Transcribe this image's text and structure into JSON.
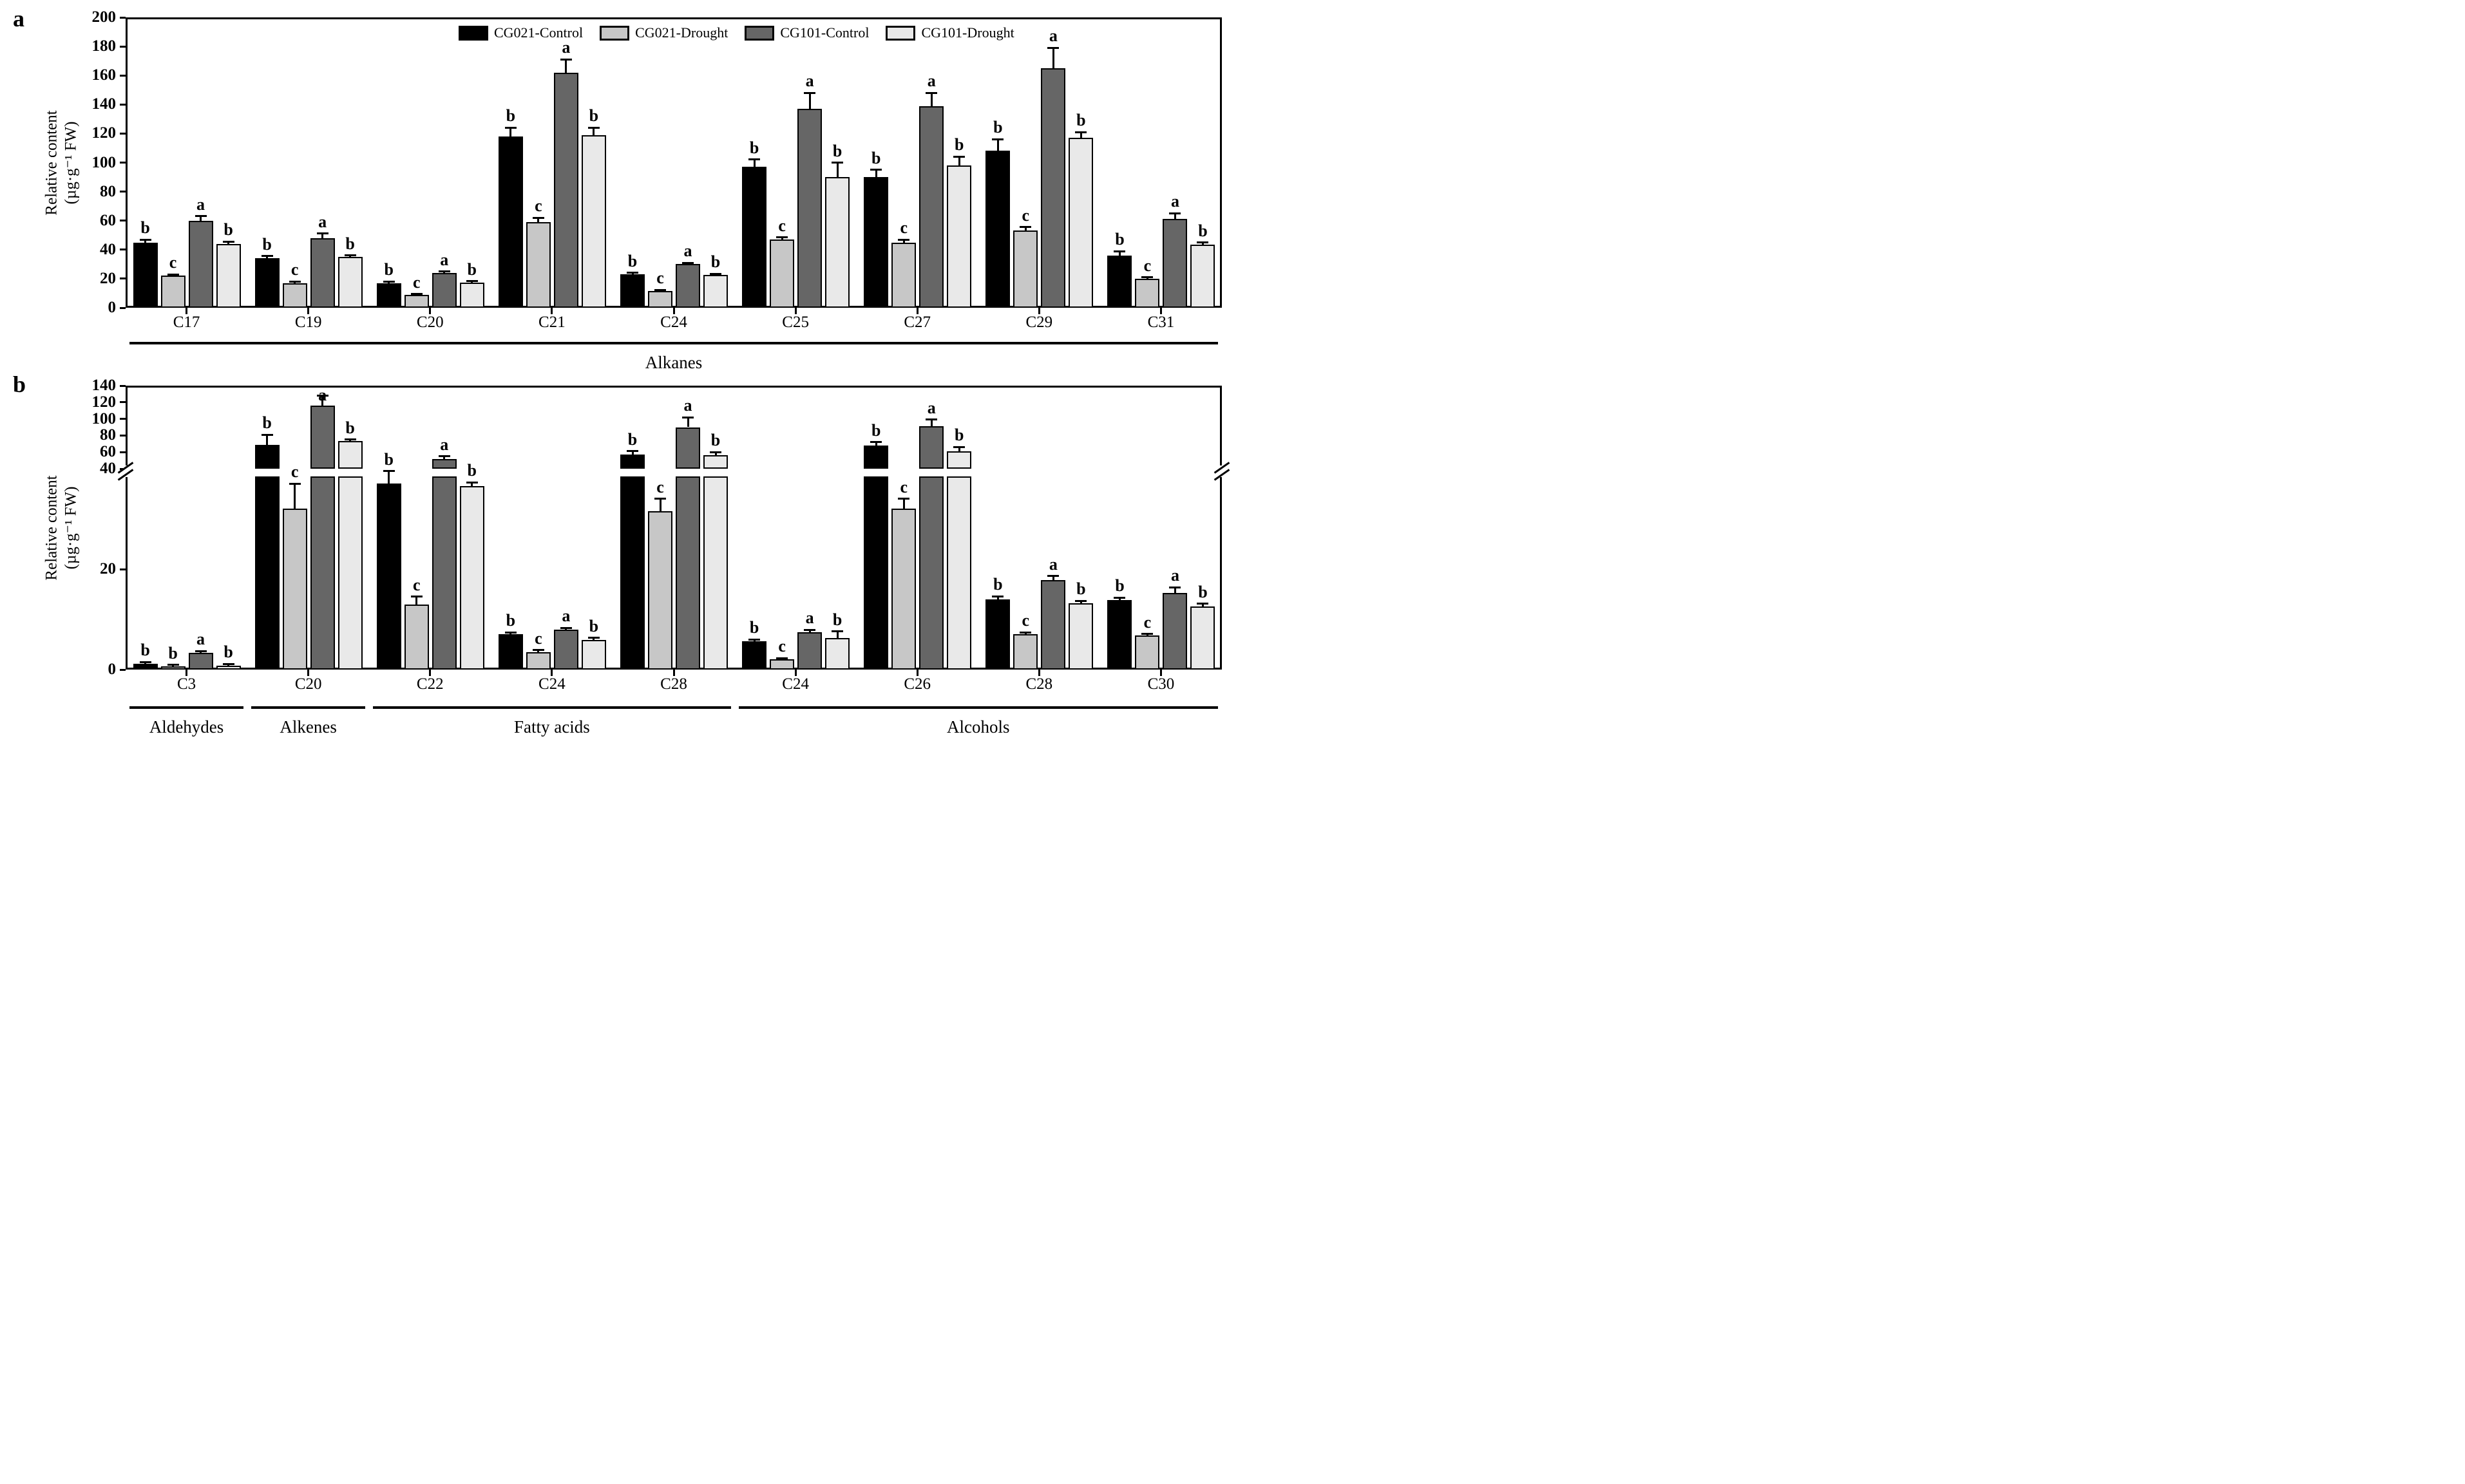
{
  "figure": {
    "panel_a_letter": "a",
    "panel_b_letter": "b",
    "ylabel_line1": "Relative content",
    "ylabel_line2": "(µg·g⁻¹ FW)"
  },
  "legend": {
    "items": [
      {
        "label": "CG021-Control",
        "color": "#000000"
      },
      {
        "label": "CG021-Drought",
        "color": "#c7c7c7"
      },
      {
        "label": "CG101-Control",
        "color": "#666666"
      },
      {
        "label": "CG101-Drought",
        "color": "#e9e9e9"
      }
    ]
  },
  "chart_data": [
    {
      "id": "a",
      "type": "bar",
      "panel_letter": "a",
      "title": "",
      "xlabel": "",
      "ylabel": "Relative content (µg·g⁻¹ FW)",
      "ylim": [
        0,
        200
      ],
      "yticks": [
        0,
        20,
        40,
        60,
        80,
        100,
        120,
        140,
        160,
        180,
        200
      ],
      "grid": false,
      "legend_position": "top-center",
      "categories": [
        "C17",
        "C19",
        "C20",
        "C21",
        "C24",
        "C25",
        "C27",
        "C29",
        "C31"
      ],
      "class_groups": [
        {
          "label": "Alkanes",
          "from": 0,
          "to": 8
        }
      ],
      "series": [
        {
          "name": "CG021-Control",
          "color": "#000000",
          "values": [
            45,
            34,
            17,
            118,
            23,
            97,
            90,
            108,
            36
          ],
          "errors": [
            2,
            1.5,
            1,
            6,
            1,
            5,
            5,
            8,
            3
          ],
          "letters": [
            "b",
            "b",
            "b",
            "b",
            "b",
            "b",
            "b",
            "b",
            "b"
          ]
        },
        {
          "name": "CG021-Drought",
          "color": "#c7c7c7",
          "values": [
            22,
            17,
            9,
            59,
            11.5,
            47,
            45,
            53,
            20
          ],
          "errors": [
            1,
            1,
            0.5,
            3,
            0.8,
            1.5,
            2,
            2.5,
            1
          ],
          "letters": [
            "c",
            "c",
            "c",
            "c",
            "c",
            "c",
            "c",
            "c",
            "c"
          ]
        },
        {
          "name": "CG101-Control",
          "color": "#666666",
          "values": [
            60,
            48,
            24,
            162,
            30,
            137,
            139,
            165,
            61
          ],
          "errors": [
            3,
            3,
            1,
            9,
            1,
            11,
            9,
            14,
            4
          ],
          "letters": [
            "a",
            "a",
            "a",
            "a",
            "a",
            "a",
            "a",
            "a",
            "a"
          ]
        },
        {
          "name": "CG101-Drought",
          "color": "#e9e9e9",
          "values": [
            44,
            35,
            17.5,
            119,
            22.5,
            90,
            98,
            117,
            43.5
          ],
          "errors": [
            1.5,
            1,
            0.7,
            5,
            1,
            10,
            6,
            4,
            1.5
          ],
          "letters": [
            "b",
            "b",
            "b",
            "b",
            "b",
            "b",
            "b",
            "b",
            "b"
          ]
        }
      ]
    },
    {
      "id": "b",
      "type": "bar",
      "panel_letter": "b",
      "title": "",
      "xlabel": "",
      "ylabel": "Relative content (µg·g⁻¹ FW)",
      "ylim": [
        0,
        140
      ],
      "yticks_lower": [
        0,
        20,
        40
      ],
      "yticks_upper": [
        60,
        80,
        100,
        120,
        140
      ],
      "axis_break": {
        "at": 40,
        "note": "y-axis break between 40 and 60; lower section expanded"
      },
      "grid": false,
      "categories": [
        "C3",
        "C20",
        "C22",
        "C24",
        "C28",
        "C24",
        "C26",
        "C28",
        "C30"
      ],
      "class_groups": [
        {
          "label": "Aldehydes",
          "from": 0,
          "to": 0
        },
        {
          "label": "Alkenes",
          "from": 1,
          "to": 1
        },
        {
          "label": "Fatty acids",
          "from": 2,
          "to": 4
        },
        {
          "label": "Alcohols",
          "from": 5,
          "to": 8
        }
      ],
      "series": [
        {
          "name": "CG021-Control",
          "color": "#000000",
          "values": [
            1.1,
            69,
            37,
            7,
            57,
            5.6,
            68,
            14,
            13.8
          ],
          "errors": [
            0.4,
            12,
            2.5,
            0.4,
            4,
            0.4,
            4,
            0.6,
            0.5
          ],
          "letters": [
            "b",
            "b",
            "b",
            "b",
            "b",
            "b",
            "b",
            "b",
            "b"
          ]
        },
        {
          "name": "CG021-Drought",
          "color": "#c7c7c7",
          "values": [
            0.6,
            32,
            13,
            3.4,
            31.5,
            2,
            32,
            7,
            6.8
          ],
          "errors": [
            0.3,
            5,
            1.5,
            0.5,
            2.5,
            0.3,
            2,
            0.4,
            0.3
          ],
          "letters": [
            "b",
            "c",
            "c",
            "c",
            "c",
            "c",
            "c",
            "c",
            "c"
          ]
        },
        {
          "name": "CG101-Control",
          "color": "#666666",
          "values": [
            3.3,
            116,
            52,
            7.9,
            90,
            7.4,
            91,
            17.8,
            15.2
          ],
          "errors": [
            0.4,
            12,
            3,
            0.4,
            12,
            0.5,
            8,
            0.8,
            1.2
          ],
          "letters": [
            "a",
            "a",
            "a",
            "a",
            "a",
            "a",
            "a",
            "a",
            "a"
          ]
        },
        {
          "name": "CG101-Drought",
          "color": "#e9e9e9",
          "values": [
            0.8,
            73,
            36.5,
            5.9,
            56,
            6.3,
            61,
            13.2,
            12.6
          ],
          "errors": [
            0.3,
            2,
            0.8,
            0.4,
            4,
            1.3,
            5,
            0.5,
            0.5
          ],
          "letters": [
            "b",
            "b",
            "b",
            "b",
            "b",
            "b",
            "b",
            "b",
            "b"
          ]
        }
      ]
    }
  ]
}
